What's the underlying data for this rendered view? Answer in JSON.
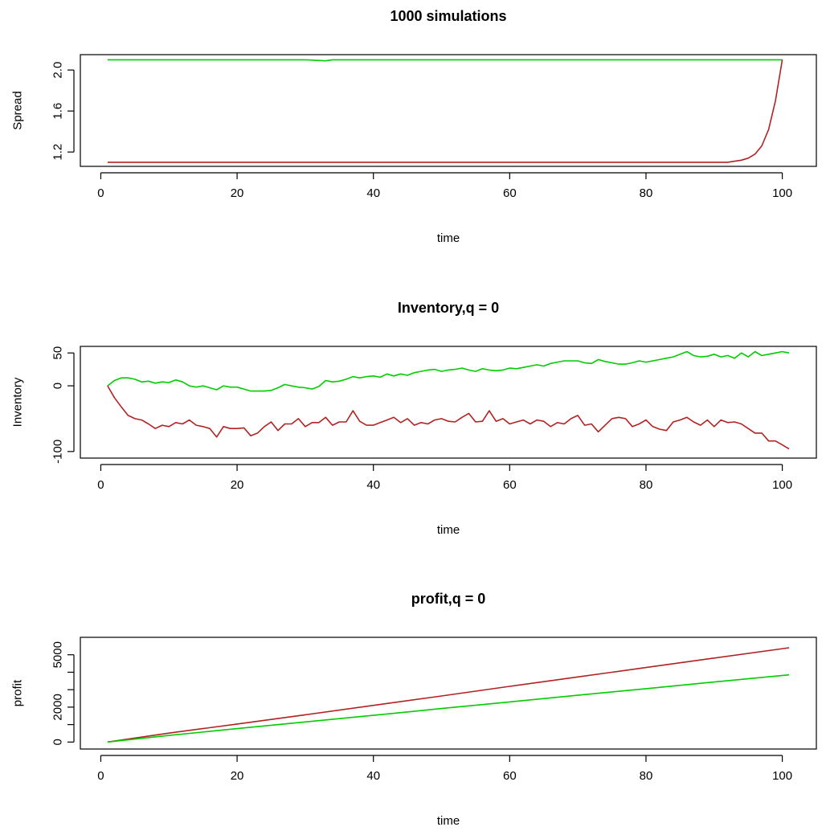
{
  "chart_data": [
    {
      "type": "line",
      "title": "1000 simulations",
      "xlabel": "time",
      "ylabel": "Spread",
      "xlim": [
        -3,
        105
      ],
      "ylim": [
        1.06,
        2.15
      ],
      "xticks": [
        0,
        20,
        40,
        60,
        80,
        100
      ],
      "yticks": [
        1.2,
        1.6,
        2.0
      ],
      "grid": false,
      "series": [
        {
          "color": "#00cc00",
          "x": [
            1,
            10,
            20,
            30,
            33,
            34,
            40,
            50,
            60,
            70,
            80,
            90,
            100
          ],
          "y": [
            2.1,
            2.1,
            2.1,
            2.1,
            2.09,
            2.1,
            2.1,
            2.1,
            2.1,
            2.1,
            2.1,
            2.1,
            2.1
          ]
        },
        {
          "color": "#b22222",
          "x": [
            1,
            20,
            40,
            60,
            80,
            92,
            93,
            94,
            95,
            96,
            97,
            98,
            99,
            100
          ],
          "y": [
            1.1,
            1.1,
            1.1,
            1.1,
            1.1,
            1.1,
            1.11,
            1.12,
            1.14,
            1.18,
            1.26,
            1.42,
            1.7,
            2.1
          ]
        }
      ]
    },
    {
      "type": "line",
      "title": "Inventory,q = 0",
      "xlabel": "time",
      "ylabel": "Inventory",
      "xlim": [
        -3,
        105
      ],
      "ylim": [
        -110,
        60
      ],
      "xticks": [
        0,
        20,
        40,
        60,
        80,
        100
      ],
      "yticks": [
        -100,
        0,
        50
      ],
      "ytick_labels": [
        "-100",
        "0",
        "50"
      ],
      "grid": false,
      "series": [
        {
          "color": "#00cc00",
          "x": [
            1,
            2,
            3,
            4,
            5,
            6,
            7,
            8,
            9,
            10,
            11,
            12,
            13,
            14,
            15,
            16,
            17,
            18,
            19,
            20,
            21,
            22,
            23,
            24,
            25,
            26,
            27,
            28,
            29,
            30,
            31,
            32,
            33,
            34,
            35,
            36,
            37,
            38,
            39,
            40,
            41,
            42,
            43,
            44,
            45,
            46,
            47,
            48,
            49,
            50,
            51,
            52,
            53,
            54,
            55,
            56,
            57,
            58,
            59,
            60,
            61,
            62,
            63,
            64,
            65,
            66,
            67,
            68,
            69,
            70,
            71,
            72,
            73,
            74,
            75,
            76,
            77,
            78,
            79,
            80,
            81,
            82,
            83,
            84,
            85,
            86,
            87,
            88,
            89,
            90,
            91,
            92,
            93,
            94,
            95,
            96,
            97,
            98,
            99,
            100,
            101
          ],
          "y": [
            0,
            8,
            12,
            12,
            10,
            6,
            7,
            4,
            6,
            5,
            9,
            6,
            0,
            -2,
            0,
            -3,
            -6,
            0,
            -2,
            -2,
            -5,
            -8,
            -8,
            -8,
            -7,
            -3,
            2,
            0,
            -2,
            -3,
            -5,
            -1,
            8,
            6,
            7,
            10,
            14,
            12,
            14,
            15,
            13,
            18,
            15,
            18,
            16,
            20,
            22,
            24,
            25,
            22,
            24,
            25,
            27,
            24,
            22,
            26,
            24,
            23,
            24,
            27,
            26,
            28,
            30,
            32,
            30,
            34,
            36,
            38,
            38,
            38,
            35,
            34,
            40,
            37,
            35,
            33,
            33,
            35,
            38,
            36,
            38,
            40,
            42,
            44,
            48,
            52,
            46,
            44,
            45,
            48,
            44,
            46,
            42,
            50,
            44,
            52,
            46,
            48,
            50,
            52,
            50
          ]
        },
        {
          "color": "#b22222",
          "x": [
            1,
            2,
            3,
            4,
            5,
            6,
            7,
            8,
            9,
            10,
            11,
            12,
            13,
            14,
            15,
            16,
            17,
            18,
            19,
            20,
            21,
            22,
            23,
            24,
            25,
            26,
            27,
            28,
            29,
            30,
            31,
            32,
            33,
            34,
            35,
            36,
            37,
            38,
            39,
            40,
            41,
            42,
            43,
            44,
            45,
            46,
            47,
            48,
            49,
            50,
            51,
            52,
            53,
            54,
            55,
            56,
            57,
            58,
            59,
            60,
            61,
            62,
            63,
            64,
            65,
            66,
            67,
            68,
            69,
            70,
            71,
            72,
            73,
            74,
            75,
            76,
            77,
            78,
            79,
            80,
            81,
            82,
            83,
            84,
            85,
            86,
            87,
            88,
            89,
            90,
            91,
            92,
            93,
            94,
            95,
            96,
            97,
            98,
            99,
            100,
            101
          ],
          "y": [
            0,
            -18,
            -32,
            -45,
            -50,
            -52,
            -58,
            -65,
            -60,
            -62,
            -56,
            -58,
            -52,
            -60,
            -62,
            -65,
            -78,
            -62,
            -65,
            -65,
            -64,
            -76,
            -72,
            -62,
            -55,
            -68,
            -58,
            -58,
            -50,
            -62,
            -56,
            -56,
            -48,
            -60,
            -55,
            -55,
            -38,
            -54,
            -60,
            -60,
            -56,
            -52,
            -48,
            -56,
            -50,
            -60,
            -56,
            -58,
            -52,
            -50,
            -54,
            -55,
            -48,
            -42,
            -55,
            -54,
            -38,
            -54,
            -50,
            -58,
            -55,
            -52,
            -58,
            -52,
            -54,
            -62,
            -56,
            -58,
            -50,
            -45,
            -60,
            -58,
            -70,
            -60,
            -50,
            -48,
            -50,
            -62,
            -58,
            -52,
            -62,
            -66,
            -68,
            -55,
            -52,
            -48,
            -55,
            -60,
            -52,
            -62,
            -52,
            -56,
            -55,
            -58,
            -65,
            -72,
            -72,
            -84,
            -84,
            -90,
            -96
          ]
        }
      ]
    },
    {
      "type": "line",
      "title": "profit,q = 0",
      "xlabel": "time",
      "ylabel": "profit",
      "xlim": [
        -3,
        105
      ],
      "ylim": [
        -400,
        6000
      ],
      "xticks": [
        0,
        20,
        40,
        60,
        80,
        100
      ],
      "yticks": [
        0,
        1000,
        2000,
        3000,
        4000,
        5000
      ],
      "ytick_labels": [
        "0",
        "",
        "2000",
        "",
        "",
        "5000"
      ],
      "grid": false,
      "series": [
        {
          "color": "#b22222",
          "x": [
            1,
            10,
            20,
            30,
            40,
            50,
            60,
            70,
            80,
            90,
            101
          ],
          "y": [
            0,
            510,
            1030,
            1560,
            2100,
            2640,
            3190,
            3730,
            4270,
            4810,
            5400
          ]
        },
        {
          "color": "#00cc00",
          "x": [
            1,
            10,
            20,
            30,
            40,
            50,
            60,
            70,
            80,
            90,
            101
          ],
          "y": [
            0,
            380,
            770,
            1150,
            1530,
            1920,
            2300,
            2680,
            3060,
            3440,
            3850
          ]
        }
      ]
    }
  ]
}
